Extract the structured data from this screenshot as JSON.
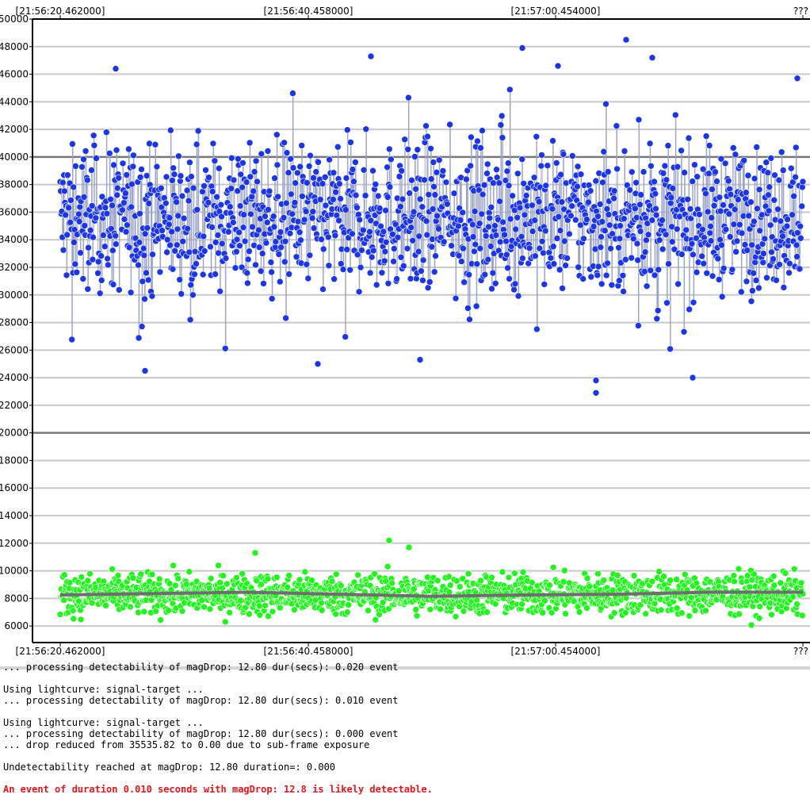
{
  "chart_data": {
    "type": "scatter",
    "title": "",
    "xlabel": "",
    "ylabel": "",
    "x_tick_labels": [
      "[21:56:20.462000]",
      "[21:56:40.458000]",
      "[21:57:00.454000]",
      "???"
    ],
    "x_range": [
      "21:56:20.462000",
      "21:57:20.450000"
    ],
    "ylim": [
      4800,
      50000
    ],
    "y_ticks": [
      6000,
      8000,
      10000,
      12000,
      14000,
      16000,
      18000,
      20000,
      22000,
      24000,
      26000,
      28000,
      30000,
      32000,
      34000,
      36000,
      38000,
      40000,
      42000,
      44000,
      46000,
      48000,
      50000
    ],
    "emphasized_y_lines": [
      20000,
      40000
    ],
    "grid": true,
    "legend": "none",
    "series": [
      {
        "color": "#1c35e8",
        "marker": "circle",
        "connected_by_vertical_lines": true,
        "approx_points": 3600,
        "mean": 35600,
        "typical_range": [
          30000,
          41000
        ],
        "min": 22900,
        "max": 48500,
        "notable_low_points": [
          24500,
          25000,
          25300,
          23800,
          22900,
          24000
        ],
        "notable_high_points": [
          46400,
          47300,
          47900,
          46600,
          48500,
          47200,
          45700
        ]
      },
      {
        "color": "#22f51d",
        "marker": "circle",
        "approx_points": 3600,
        "mean": 8300,
        "typical_range": [
          6500,
          10200
        ],
        "min": 5600,
        "max": 12200,
        "notable_high_points": [
          12200,
          11700,
          11300
        ]
      },
      {
        "color": "#6e6e6e",
        "style": "line",
        "description_values": [
          8250,
          8350,
          8450,
          8300,
          8150,
          8250,
          8300,
          8450,
          8450
        ],
        "role": "running mean of green series"
      }
    ]
  },
  "colors": {
    "target_points": "#1c35e8",
    "reference_points": "#22f51d",
    "mean_line": "#6e6e6e",
    "grid": "#c8c8c8",
    "emphasis_grid": "#777777",
    "error_text": "#e8141b"
  },
  "log": {
    "lines": [
      {
        "text": "... processing detectability of magDrop: 12.80 dur(secs): 0.020 event",
        "color": "normal"
      },
      {
        "text": "",
        "color": "normal"
      },
      {
        "text": "Using lightcurve: signal-target ...",
        "color": "normal"
      },
      {
        "text": "... processing detectability of magDrop: 12.80 dur(secs): 0.010 event",
        "color": "normal"
      },
      {
        "text": "",
        "color": "normal"
      },
      {
        "text": "Using lightcurve: signal-target ...",
        "color": "normal"
      },
      {
        "text": "... processing detectability of magDrop: 12.80 dur(secs): 0.000 event",
        "color": "normal"
      },
      {
        "text": "... drop reduced from 35535.82 to 0.00 due to sub-frame exposure",
        "color": "normal"
      },
      {
        "text": "",
        "color": "normal"
      },
      {
        "text": "Undetectability reached at magDrop: 12.80 duration=: 0.000",
        "color": "normal"
      },
      {
        "text": "",
        "color": "normal"
      },
      {
        "text": "An event of duration 0.010 seconds with magDrop: 12.8 is likely detectable.",
        "color": "red"
      }
    ]
  }
}
